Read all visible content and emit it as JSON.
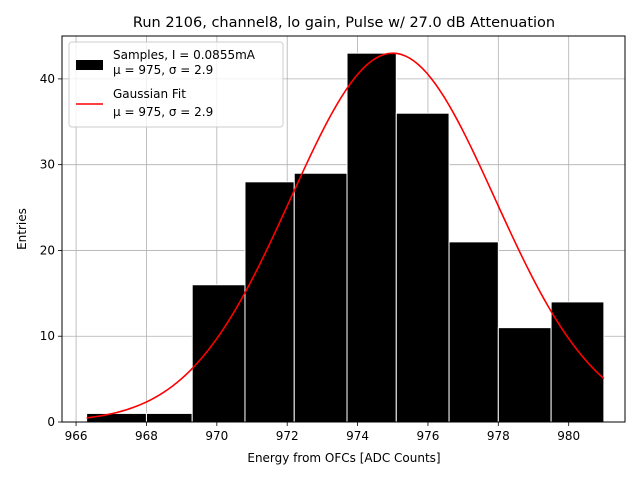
{
  "chart_data": {
    "type": "histogram",
    "title": "Run 2106, channel8, lo gain, Pulse w/ 27.0 dB Attenuation",
    "xlabel": "Energy from OFCs [ADC Counts]",
    "ylabel": "Entries",
    "xlim": [
      965.6,
      981.6
    ],
    "ylim": [
      0,
      45
    ],
    "grid": true,
    "x_ticks": [
      966,
      968,
      970,
      972,
      974,
      976,
      978,
      980
    ],
    "y_ticks": [
      0,
      10,
      20,
      30,
      40
    ],
    "bins": [
      {
        "x0": 966.3,
        "x1": 968.0,
        "count": 1
      },
      {
        "x0": 968.0,
        "x1": 969.3,
        "count": 1
      },
      {
        "x0": 969.3,
        "x1": 970.8,
        "count": 16
      },
      {
        "x0": 970.8,
        "x1": 972.2,
        "count": 28
      },
      {
        "x0": 972.2,
        "x1": 973.7,
        "count": 29
      },
      {
        "x0": 973.7,
        "x1": 975.1,
        "count": 43
      },
      {
        "x0": 975.1,
        "x1": 976.6,
        "count": 36
      },
      {
        "x0": 976.6,
        "x1": 978.0,
        "count": 21
      },
      {
        "x0": 978.0,
        "x1": 979.5,
        "count": 11
      },
      {
        "x0": 979.5,
        "x1": 981.0,
        "count": 14
      }
    ],
    "fit": {
      "type": "gaussian",
      "amplitude": 43,
      "mu": 975.0,
      "sigma": 2.9,
      "x_range": [
        966.3,
        981.0
      ]
    },
    "legend": {
      "placement": "top-left",
      "entries": [
        {
          "label": "Samples, I = 0.0855mA",
          "sublabel": "μ = 975, σ = 2.9",
          "kind": "bar",
          "color": "#000000"
        },
        {
          "label": "Gaussian Fit",
          "sublabel": "μ = 975, σ = 2.9",
          "kind": "line",
          "color": "#ff0000"
        }
      ]
    }
  }
}
